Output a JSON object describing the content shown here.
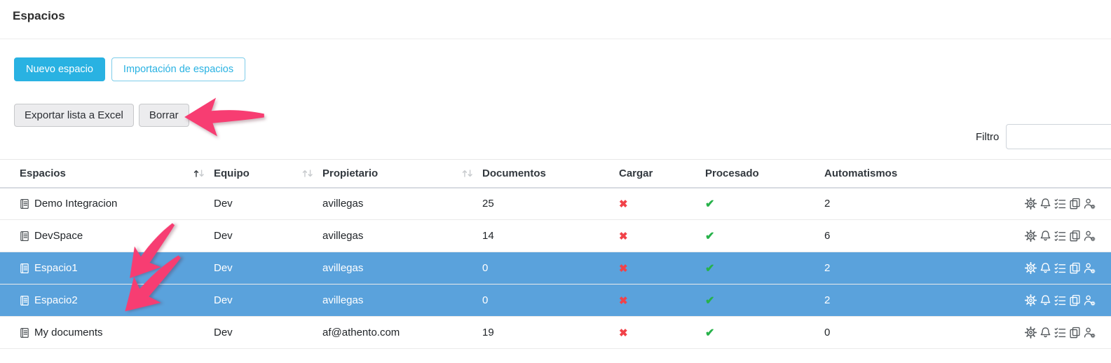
{
  "page": {
    "title": "Espacios"
  },
  "toolbar": {
    "new_space_label": "Nuevo espacio",
    "import_spaces_label": "Importación de espacios",
    "export_excel_label": "Exportar lista a Excel",
    "delete_label": "Borrar"
  },
  "filter": {
    "label": "Filtro",
    "value": ""
  },
  "table": {
    "columns": [
      {
        "label": "Espacios",
        "sortable": true,
        "sort": "asc"
      },
      {
        "label": "Equipo",
        "sortable": true,
        "sort": "none"
      },
      {
        "label": "Propietario",
        "sortable": true,
        "sort": "none"
      },
      {
        "label": "Documentos",
        "sortable": false
      },
      {
        "label": "Cargar",
        "sortable": false
      },
      {
        "label": "Procesado",
        "sortable": false
      },
      {
        "label": "Automatismos",
        "sortable": false
      },
      {
        "label": "",
        "sortable": false
      }
    ],
    "rows": [
      {
        "name": "Demo Integracion",
        "team": "Dev",
        "owner": "avillegas",
        "documents": "25",
        "cargar": false,
        "procesado": true,
        "automatisms": "2",
        "selected": false
      },
      {
        "name": "DevSpace",
        "team": "Dev",
        "owner": "avillegas",
        "documents": "14",
        "cargar": false,
        "procesado": true,
        "automatisms": "6",
        "selected": false
      },
      {
        "name": "Espacio1",
        "team": "Dev",
        "owner": "avillegas",
        "documents": "0",
        "cargar": false,
        "procesado": true,
        "automatisms": "2",
        "selected": true
      },
      {
        "name": "Espacio2",
        "team": "Dev",
        "owner": "avillegas",
        "documents": "0",
        "cargar": false,
        "procesado": true,
        "automatisms": "2",
        "selected": true
      },
      {
        "name": "My documents",
        "team": "Dev",
        "owner": "af@athento.com",
        "documents": "19",
        "cargar": false,
        "procesado": true,
        "automatisms": "0",
        "selected": false
      }
    ],
    "row_action_icons": [
      "settings-icon",
      "bell-icon",
      "tasks-icon",
      "copy-icon",
      "user-settings-icon"
    ],
    "symbols": {
      "cross": "✖",
      "check": "✔"
    }
  },
  "colors": {
    "accent_cyan": "#29b2e2",
    "selected_row_blue": "#5aa2dc",
    "cross_red": "#f14249",
    "check_green": "#27b24a",
    "annotation_pink": "#f73d72"
  }
}
